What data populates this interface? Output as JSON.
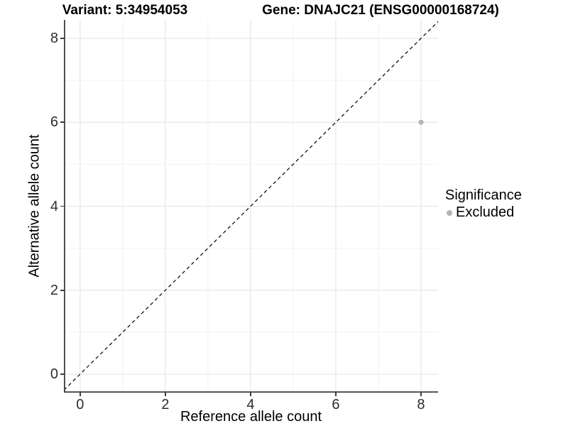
{
  "figure": {
    "background": "#ffffff"
  },
  "chart_data": {
    "type": "scatter",
    "title_left": "Variant: 5:34954053",
    "title_right": "Gene: DNAJC21 (ENSG00000168724)",
    "xlabel": "Reference allele count",
    "ylabel": "Alternative allele count",
    "xlim": [
      -0.38,
      8.4
    ],
    "ylim": [
      -0.44,
      8.44
    ],
    "x_ticks": [
      0,
      2,
      4,
      6,
      8
    ],
    "y_ticks": [
      0,
      2,
      4,
      6,
      8
    ],
    "grid_lines_at": [
      0,
      1,
      2,
      3,
      4,
      5,
      6,
      7,
      8
    ],
    "grid": true,
    "reference_line": {
      "type": "identity",
      "style": "dashed",
      "color": "#000000"
    },
    "series": [
      {
        "name": "Excluded",
        "color": "#b4b4b4",
        "points": [
          {
            "x": 8,
            "y": 6
          }
        ]
      }
    ],
    "legend": {
      "title": "Significance",
      "position": "right",
      "entries": [
        {
          "label": "Excluded",
          "color": "#b4b4b4"
        }
      ]
    },
    "colors": {
      "point": "#b4b4b4",
      "grid_major": "#e6e6e6",
      "grid_minor": "#f2f2f2",
      "axis_line": "#3d3d3d",
      "tick_text": "#2e2e2e",
      "reference_line": "#000000"
    }
  }
}
